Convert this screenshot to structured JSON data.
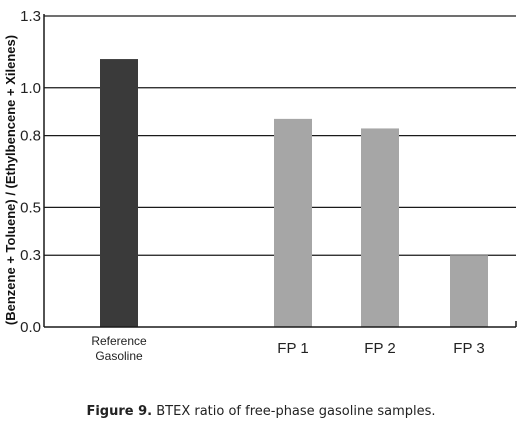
{
  "chart_data": {
    "type": "bar",
    "categories": [
      [
        "Reference",
        "Gasoline"
      ],
      [
        "FP 1"
      ],
      [
        "FP 2"
      ],
      [
        "FP 3"
      ]
    ],
    "values": [
      1.12,
      0.87,
      0.83,
      0.3
    ],
    "colors": [
      "#3a3a3a",
      "#a6a6a6",
      "#a6a6a6",
      "#a6a6a6"
    ],
    "ylabel": "(Benzene + Toluene) / (Ethylbencene + Xilenes)",
    "ylim": [
      0.0,
      1.3
    ],
    "yticks": [
      0.0,
      0.3,
      0.5,
      0.8,
      1.0,
      1.3
    ],
    "yticks_text": [
      "0.0",
      "0.3",
      "0.5",
      "0.8",
      "1.0",
      "1.3"
    ],
    "grid": "horizontal"
  },
  "caption": {
    "label": "Figure 9.",
    "text": " BTEX ratio of free-phase gasoline samples."
  }
}
